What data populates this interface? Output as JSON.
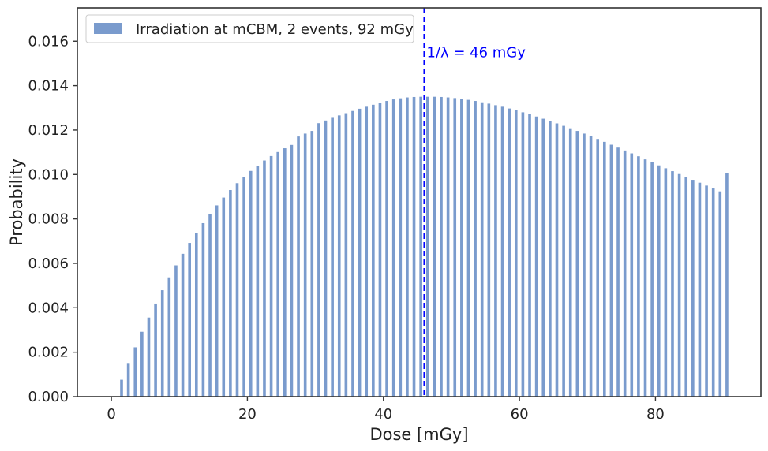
{
  "chart_data": {
    "type": "bar",
    "xlabel": "Dose [mGy]",
    "ylabel": "Probability",
    "xlim": [
      -5,
      95.5
    ],
    "ylim": [
      0,
      0.0175
    ],
    "xticks": [
      0,
      20,
      40,
      60,
      80
    ],
    "xtick_labels": [
      "0",
      "20",
      "40",
      "60",
      "80"
    ],
    "yticks": [
      0,
      0.002,
      0.004,
      0.006,
      0.008,
      0.01,
      0.012,
      0.014,
      0.016
    ],
    "ytick_labels": [
      "0.000",
      "0.002",
      "0.004",
      "0.006",
      "0.008",
      "0.010",
      "0.012",
      "0.014",
      "0.016"
    ],
    "grid": false,
    "legend_position": "top-left",
    "bar_color": "#7a9bcd",
    "series": [
      {
        "name": "Irradiation at mCBM, 2 events, 92 mGy",
        "x": [
          0,
          1,
          2,
          3,
          4,
          5,
          6,
          7,
          8,
          9,
          10,
          11,
          12,
          13,
          14,
          15,
          16,
          17,
          18,
          19,
          20,
          21,
          22,
          23,
          24,
          25,
          26,
          27,
          28,
          29,
          30,
          31,
          32,
          33,
          34,
          35,
          36,
          37,
          38,
          39,
          40,
          41,
          42,
          43,
          44,
          45,
          46,
          47,
          48,
          49,
          50,
          51,
          52,
          53,
          54,
          55,
          56,
          57,
          58,
          59,
          60,
          61,
          62,
          63,
          64,
          65,
          66,
          67,
          68,
          69,
          70,
          71,
          72,
          73,
          74,
          75,
          76,
          77,
          78,
          79,
          80,
          81,
          82,
          83,
          84,
          85,
          86,
          87,
          88,
          89,
          90
        ],
        "values": [
          0.0,
          0.00076,
          0.00148,
          0.00222,
          0.00292,
          0.00356,
          0.00419,
          0.00479,
          0.00537,
          0.00591,
          0.00643,
          0.00692,
          0.00738,
          0.00781,
          0.00822,
          0.00861,
          0.00896,
          0.0093,
          0.00961,
          0.0099,
          0.01016,
          0.0104,
          0.01063,
          0.01083,
          0.01101,
          0.01118,
          0.01133,
          0.01171,
          0.01184,
          0.01196,
          0.01231,
          0.01243,
          0.01255,
          0.01266,
          0.01276,
          0.01286,
          0.01296,
          0.01305,
          0.01314,
          0.01323,
          0.01331,
          0.01338,
          0.01343,
          0.01347,
          0.01349,
          0.0135,
          0.0135,
          0.0135,
          0.01349,
          0.01347,
          0.01344,
          0.0134,
          0.01336,
          0.01331,
          0.01325,
          0.01319,
          0.01312,
          0.01305,
          0.01297,
          0.01289,
          0.0128,
          0.01271,
          0.01261,
          0.01251,
          0.01241,
          0.0123,
          0.01219,
          0.01208,
          0.01196,
          0.01184,
          0.01172,
          0.0116,
          0.01147,
          0.01134,
          0.01121,
          0.01108,
          0.01095,
          0.01082,
          0.01068,
          0.01055,
          0.01041,
          0.01028,
          0.01015,
          0.01002,
          0.00989,
          0.00976,
          0.00963,
          0.0095,
          0.00937,
          0.00924,
          0.01005
        ]
      }
    ],
    "vline": {
      "x": 46,
      "label": "1/λ = 46 mGy",
      "color": "#0000ff",
      "style": "dashed"
    }
  }
}
